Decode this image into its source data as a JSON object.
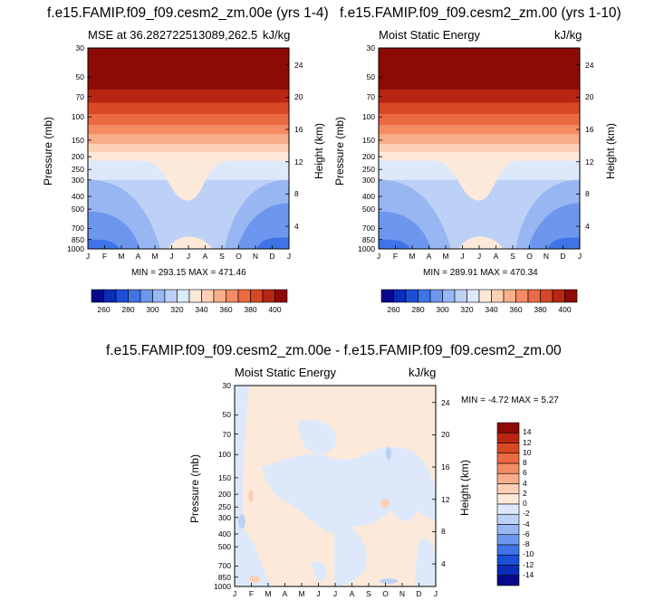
{
  "chart_data": [
    {
      "type": "contour",
      "title": "f.e15.FAMIP.f09_f09.cesm2_zm.00e (yrs 1-4)",
      "left_label": "MSE at 36.282722513089,262.5",
      "right_label": "kJ/kg",
      "ylabel": "Pressure (mb)",
      "ylabel_right": "Height (km)",
      "x_ticks": [
        "J",
        "F",
        "M",
        "A",
        "M",
        "J",
        "J",
        "A",
        "S",
        "O",
        "N",
        "D",
        "J"
      ],
      "y_ticks": [
        "30",
        "50",
        "70",
        "100",
        "150",
        "200",
        "250",
        "300",
        "400",
        "500",
        "700",
        "850",
        "1000"
      ],
      "y_ticks_right": [
        "24",
        "20",
        "16",
        "12",
        "8",
        "4"
      ],
      "stats": "MIN = 293.15 MAX = 471.46",
      "min": 293.15,
      "max": 471.46
    },
    {
      "type": "contour",
      "title": "f.e15.FAMIP.f09_f09.cesm2_zm.00 (yrs 1-10)",
      "left_label": "Moist Static Energy",
      "right_label": "kJ/kg",
      "ylabel": "Pressure (mb)",
      "ylabel_right": "Height (km)",
      "x_ticks": [
        "J",
        "F",
        "M",
        "A",
        "M",
        "J",
        "J",
        "A",
        "S",
        "O",
        "N",
        "D",
        "J"
      ],
      "y_ticks": [
        "30",
        "50",
        "70",
        "100",
        "150",
        "200",
        "250",
        "300",
        "400",
        "500",
        "700",
        "850",
        "1000"
      ],
      "y_ticks_right": [
        "24",
        "20",
        "16",
        "12",
        "8",
        "4"
      ],
      "stats": "MIN = 289.91 MAX = 470.34",
      "min": 289.91,
      "max": 470.34
    },
    {
      "type": "contour",
      "title": "f.e15.FAMIP.f09_f09.cesm2_zm.00e - f.e15.FAMIP.f09_f09.cesm2_zm.00",
      "left_label": "Moist Static Energy",
      "right_label": "kJ/kg",
      "ylabel": "Pressure (mb)",
      "ylabel_right": "Height (km)",
      "x_ticks": [
        "J",
        "F",
        "M",
        "A",
        "M",
        "J",
        "J",
        "A",
        "S",
        "O",
        "N",
        "D",
        "J"
      ],
      "y_ticks": [
        "30",
        "50",
        "70",
        "100",
        "150",
        "200",
        "250",
        "300",
        "400",
        "500",
        "700",
        "850",
        "1000"
      ],
      "y_ticks_right": [
        "24",
        "20",
        "16",
        "12",
        "8",
        "4"
      ],
      "stats": "MIN =  -4.72 MAX =   5.27",
      "min": -4.72,
      "max": 5.27
    }
  ],
  "colorbar_top": {
    "labels": [
      "260",
      "280",
      "300",
      "320",
      "340",
      "360",
      "380",
      "400"
    ],
    "colors": [
      "#08088a",
      "#0b2bb8",
      "#1c4fd8",
      "#3f74e8",
      "#6d97ee",
      "#97b6f2",
      "#bcd1f5",
      "#dde9fa",
      "#fde9d9",
      "#fbd0b5",
      "#f8ae8b",
      "#f48b63",
      "#ec6a42",
      "#d84825",
      "#b82611",
      "#8e0a05"
    ]
  },
  "colorbar_diff": {
    "labels": [
      "14",
      "12",
      "10",
      "8",
      "6",
      "4",
      "2",
      "0",
      "-2",
      "-4",
      "-6",
      "-8",
      "-10",
      "-12",
      "-14"
    ],
    "colors": [
      "#8e0a05",
      "#b82611",
      "#d84825",
      "#ec6a42",
      "#f48b63",
      "#f8ae8b",
      "#fbd0b5",
      "#fde9d9",
      "#dde9fa",
      "#bcd1f5",
      "#97b6f2",
      "#6d97ee",
      "#3f74e8",
      "#1c4fd8",
      "#0b2bb8",
      "#08088a"
    ]
  }
}
